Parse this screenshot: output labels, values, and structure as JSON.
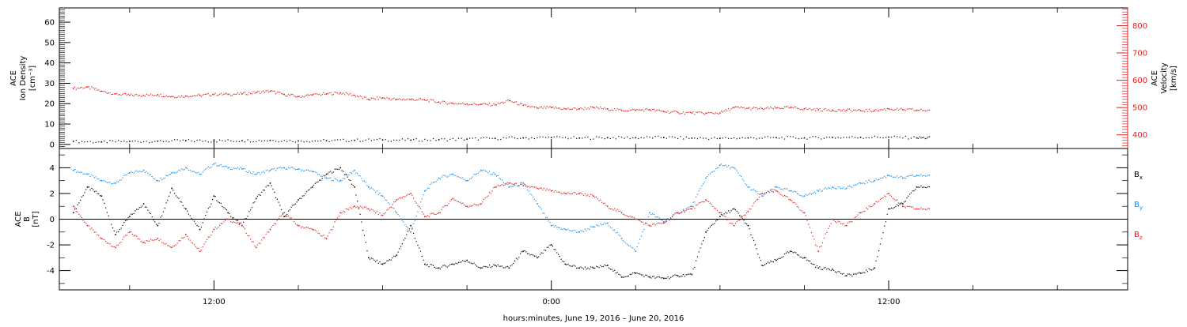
{
  "chart_data": [
    {
      "type": "scatter",
      "panel": "top",
      "ylabel_left_lines": [
        "ACE",
        "Ion Density"
      ],
      "ylabel_left_unit": "[cm⁻³]",
      "ylabel_right_lines": [
        "ACE",
        "Velocity"
      ],
      "ylabel_right_unit": "[km/s]",
      "ylim_left": [
        -2,
        67
      ],
      "yticks_left": [
        0,
        10,
        20,
        30,
        40,
        50,
        60
      ],
      "ylim_right": [
        350,
        865
      ],
      "yticks_right": [
        400,
        500,
        600,
        700,
        800
      ],
      "right_axis_color": "#e02020",
      "series": [
        {
          "axis": "left",
          "color": "#000000",
          "x": [
            7.0,
            8.0,
            9.0,
            10.0,
            11.0,
            12.0,
            13.0,
            14.0,
            15.0,
            16.0,
            17.0,
            18.0,
            19.0,
            20.0,
            21.0,
            22.0,
            23.0,
            24.0,
            25.0,
            26.0,
            27.0,
            28.0,
            29.0,
            30.0,
            31.0,
            32.0,
            33.0,
            34.0,
            35.0,
            36.0,
            37.0
          ],
          "y": [
            1.5,
            1.2,
            1.5,
            1.6,
            1.8,
            1.7,
            1.8,
            2.0,
            1.7,
            1.8,
            2.0,
            2.2,
            2.1,
            2.3,
            2.6,
            3.0,
            3.2,
            3.4,
            3.1,
            3.3,
            3.3,
            3.4,
            3.1,
            3.0,
            3.2,
            3.3,
            3.2,
            3.4,
            3.5,
            3.6,
            3.2
          ]
        },
        {
          "axis": "right",
          "color": "#e02020",
          "x": [
            7.0,
            7.5,
            8.0,
            8.5,
            9.0,
            9.5,
            10.0,
            10.5,
            11.0,
            11.5,
            12.0,
            12.5,
            13.0,
            13.5,
            14.0,
            14.5,
            15.0,
            15.5,
            16.0,
            16.5,
            17.0,
            17.5,
            18.0,
            18.5,
            19.0,
            19.5,
            20.0,
            20.5,
            21.0,
            21.5,
            22.0,
            22.5,
            23.0,
            23.5,
            24.0,
            24.5,
            25.0,
            25.5,
            26.0,
            26.5,
            27.0,
            27.5,
            28.0,
            28.5,
            29.0,
            29.5,
            30.0,
            30.5,
            31.0,
            31.5,
            32.0,
            32.5,
            33.0,
            33.5,
            34.0,
            34.5,
            35.0,
            35.5,
            36.0,
            36.5,
            37.0
          ],
          "y": [
            570,
            575,
            560,
            550,
            545,
            545,
            547,
            540,
            542,
            545,
            548,
            548,
            550,
            555,
            560,
            548,
            540,
            546,
            550,
            554,
            545,
            530,
            535,
            530,
            530,
            528,
            520,
            515,
            513,
            512,
            510,
            525,
            508,
            498,
            500,
            495,
            495,
            500,
            495,
            490,
            490,
            492,
            485,
            482,
            480,
            479,
            480,
            500,
            497,
            496,
            498,
            500,
            495,
            492,
            490,
            490,
            489,
            488,
            495,
            492,
            490
          ]
        }
      ]
    },
    {
      "type": "scatter",
      "panel": "bottom",
      "ylabel_lines": [
        "ACE",
        "B"
      ],
      "ylabel_unit": "[nT]",
      "ylim": [
        -5.5,
        5.5
      ],
      "yticks": [
        -4,
        -2,
        0,
        2,
        4
      ],
      "legend_placement": "right",
      "series": [
        {
          "name": "Bx",
          "color": "#000000",
          "x": [
            7.0,
            7.5,
            8.0,
            8.5,
            9.0,
            9.5,
            10.0,
            10.5,
            11.0,
            11.5,
            12.0,
            12.5,
            13.0,
            13.5,
            14.0,
            14.5,
            15.0,
            15.5,
            16.0,
            16.5,
            17.0,
            17.5,
            18.0,
            18.5,
            19.0,
            19.5,
            20.0,
            20.5,
            21.0,
            21.5,
            22.0,
            22.5,
            23.0,
            23.5,
            24.0,
            24.5,
            25.0,
            25.5,
            26.0,
            26.5,
            27.0,
            27.5,
            28.0,
            28.5,
            29.0,
            29.5,
            30.0,
            30.5,
            31.0,
            31.5,
            32.0,
            32.5,
            33.0,
            33.5,
            34.0,
            34.5,
            35.0,
            35.5,
            36.0,
            36.5,
            37.0
          ],
          "y": [
            0.5,
            2.5,
            1.8,
            -1.2,
            0.2,
            1.2,
            -0.5,
            2.4,
            0.8,
            -0.8,
            1.8,
            0.5,
            -0.5,
            1.6,
            2.8,
            0.2,
            1.5,
            2.5,
            3.5,
            4.0,
            2.5,
            -3.0,
            -3.5,
            -2.8,
            -0.5,
            -3.5,
            -3.8,
            -3.5,
            -3.2,
            -3.8,
            -3.6,
            -3.8,
            -2.5,
            -3.0,
            -2.0,
            -3.5,
            -3.8,
            -3.8,
            -3.6,
            -4.5,
            -4.2,
            -4.5,
            -4.6,
            -4.4,
            -4.3,
            -1.0,
            0.2,
            0.8,
            -0.5,
            -3.6,
            -3.2,
            -2.5,
            -3.0,
            -3.8,
            -3.9,
            -4.4,
            -4.2,
            -3.8,
            0.8,
            1.2,
            2.5
          ]
        },
        {
          "name": "By",
          "color": "#1f8fe6",
          "x": [
            7.0,
            7.5,
            8.0,
            8.5,
            9.0,
            9.5,
            10.0,
            10.5,
            11.0,
            11.5,
            12.0,
            12.5,
            13.0,
            13.5,
            14.0,
            14.5,
            15.0,
            15.5,
            16.0,
            16.5,
            17.0,
            17.5,
            18.0,
            18.5,
            19.0,
            19.5,
            20.0,
            20.5,
            21.0,
            21.5,
            22.0,
            22.5,
            23.0,
            23.5,
            24.0,
            24.5,
            25.0,
            25.5,
            26.0,
            26.5,
            27.0,
            27.5,
            28.0,
            28.5,
            29.0,
            29.5,
            30.0,
            30.5,
            31.0,
            31.5,
            32.0,
            32.5,
            33.0,
            33.5,
            34.0,
            34.5,
            35.0,
            35.5,
            36.0,
            36.5,
            37.0
          ],
          "y": [
            3.8,
            3.5,
            3.0,
            2.8,
            3.6,
            3.8,
            3.0,
            3.6,
            4.0,
            3.5,
            4.3,
            4.0,
            3.9,
            3.5,
            3.8,
            4.0,
            3.9,
            3.7,
            3.2,
            3.0,
            3.8,
            2.5,
            1.8,
            0.5,
            -1.0,
            2.2,
            3.2,
            3.5,
            3.0,
            3.8,
            3.5,
            2.5,
            2.8,
            1.2,
            -0.5,
            -0.8,
            -1.0,
            -0.6,
            -0.3,
            -1.5,
            -2.5,
            0.5,
            -0.2,
            0.5,
            1.0,
            3.2,
            4.2,
            4.0,
            2.5,
            1.8,
            2.5,
            2.2,
            1.8,
            2.2,
            2.5,
            2.4,
            2.8,
            3.0,
            3.4,
            3.2,
            3.4
          ]
        },
        {
          "name": "Bz",
          "color": "#e02020",
          "x": [
            7.0,
            7.5,
            8.0,
            8.5,
            9.0,
            9.5,
            10.0,
            10.5,
            11.0,
            11.5,
            12.0,
            12.5,
            13.0,
            13.5,
            14.0,
            14.5,
            15.0,
            15.5,
            16.0,
            16.5,
            17.0,
            17.5,
            18.0,
            18.5,
            19.0,
            19.5,
            20.0,
            20.5,
            21.0,
            21.5,
            22.0,
            22.5,
            23.0,
            23.5,
            24.0,
            24.5,
            25.0,
            25.5,
            26.0,
            26.5,
            27.0,
            27.5,
            28.0,
            28.5,
            29.0,
            29.5,
            30.0,
            30.5,
            31.0,
            31.5,
            32.0,
            32.5,
            33.0,
            33.5,
            34.0,
            34.5,
            35.0,
            35.5,
            36.0,
            36.5,
            37.0
          ],
          "y": [
            1.0,
            -0.5,
            -1.5,
            -2.2,
            -1.0,
            -1.8,
            -1.5,
            -2.2,
            -1.2,
            -2.5,
            -0.8,
            0.0,
            -0.5,
            -2.2,
            -0.8,
            0.5,
            -0.5,
            -0.8,
            -1.5,
            0.5,
            1.0,
            0.8,
            0.3,
            1.5,
            2.0,
            0.2,
            0.5,
            1.6,
            1.0,
            1.2,
            2.5,
            2.8,
            2.6,
            2.4,
            2.2,
            2.0,
            2.0,
            1.8,
            1.0,
            0.5,
            0.0,
            -0.5,
            -0.3,
            0.5,
            0.8,
            1.5,
            0.5,
            -0.5,
            0.6,
            2.0,
            2.2,
            1.5,
            0.5,
            -2.5,
            0.0,
            -0.5,
            0.5,
            1.2,
            2.0,
            1.0,
            0.8
          ]
        }
      ]
    }
  ],
  "x_axis": {
    "label": "hours:minutes, June 19, 2016 – June 20, 2016",
    "xlim": [
      6.5,
      44.5
    ],
    "major_ticks": [
      12,
      24,
      36
    ],
    "major_tick_labels": [
      "12:00",
      "0:00",
      "12:00"
    ],
    "minor_ticks": [
      9,
      15,
      18,
      21,
      27,
      30,
      33,
      39,
      42
    ]
  }
}
